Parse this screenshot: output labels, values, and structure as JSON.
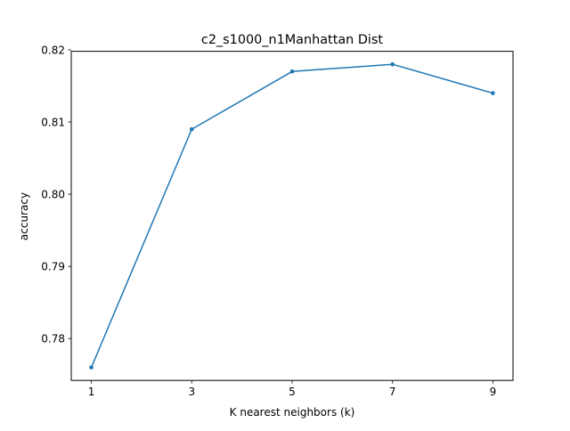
{
  "chart_data": {
    "type": "line",
    "title": "c2_s1000_n1Manhattan Dist",
    "xlabel": "K nearest neighbors (k)",
    "ylabel": "accuracy",
    "x": [
      1,
      3,
      5,
      7,
      9
    ],
    "x_ticks": [
      "1",
      "3",
      "5",
      "7",
      "9"
    ],
    "y_ticks": [
      "0.78",
      "0.79",
      "0.80",
      "0.81",
      "0.82"
    ],
    "y_tick_values": [
      0.78,
      0.79,
      0.8,
      0.81,
      0.82
    ],
    "xlim": [
      0.6,
      9.4
    ],
    "ylim": [
      0.7742,
      0.8198
    ],
    "grid": false,
    "series": [
      {
        "values": [
          0.776,
          0.809,
          0.817,
          0.818,
          0.814
        ],
        "color": "#1f77b4",
        "marker": "dot"
      }
    ]
  }
}
